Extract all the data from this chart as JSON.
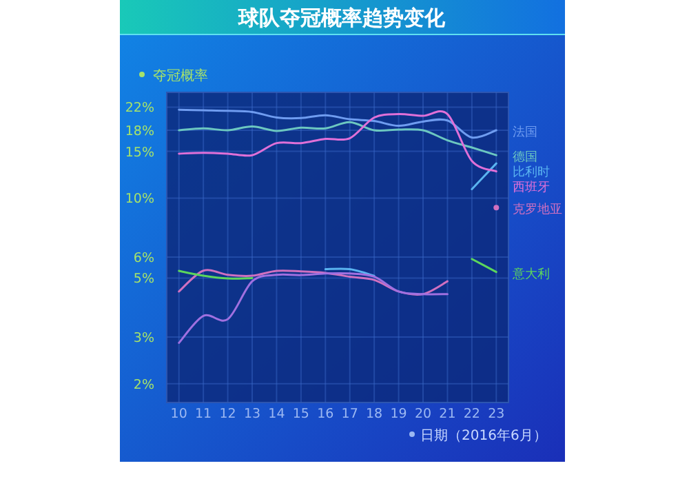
{
  "chart_data": {
    "type": "line",
    "title": "球队夺冠概率趋势变化",
    "ylabel": "夺冠概率",
    "xlabel": "日期（2016年6月）",
    "categories": [
      "10",
      "11",
      "12",
      "13",
      "14",
      "15",
      "16",
      "17",
      "18",
      "19",
      "20",
      "21",
      "22",
      "23"
    ],
    "series": [
      {
        "name": "法国",
        "color": "#6f9cf0",
        "values": [
          21.5,
          21.4,
          21.3,
          21.1,
          20.1,
          20.0,
          20.5,
          19.8,
          19.5,
          18.7,
          19.4,
          19.6,
          16.9,
          18
        ]
      },
      {
        "name": "德国",
        "color": "#6cc7c0",
        "values": [
          18,
          18.3,
          18,
          18.6,
          17.9,
          18.4,
          18.3,
          19.3,
          18,
          18.1,
          18,
          16.5,
          15.5,
          14.5
        ]
      },
      {
        "name": "比利时",
        "color": "#5ab4f0",
        "values": [
          null,
          null,
          null,
          null,
          null,
          null,
          5.4,
          5.4,
          5.1,
          null,
          null,
          null,
          10.8,
          13.5
        ]
      },
      {
        "name": "西班牙",
        "color": "#e070d8",
        "values": [
          14.7,
          14.8,
          14.7,
          14.5,
          16.1,
          16.1,
          16.7,
          16.8,
          20.1,
          20.7,
          20.4,
          20.7,
          13.8,
          12.6
        ]
      },
      {
        "name": "克罗地亚",
        "color": "#d070c0",
        "values": [
          4.45,
          5.33,
          5.14,
          5.1,
          5.32,
          5.3,
          5.23,
          5.06,
          4.92,
          4.45,
          4.35,
          4.86,
          null,
          9.2
        ]
      },
      {
        "name": "意大利",
        "color": "#5cd65c",
        "values": [
          5.32,
          5.1,
          4.98,
          5.0,
          null,
          null,
          null,
          null,
          null,
          null,
          null,
          null,
          5.9,
          5.27
        ]
      },
      {
        "color": "#a070e0",
        "values": [
          2.85,
          3.6,
          3.5,
          4.86,
          5.14,
          5.13,
          5.2,
          5.2,
          5.06,
          4.45,
          4.35,
          4.35,
          null,
          null
        ]
      }
    ],
    "ylim": [
      1.7,
      25
    ],
    "log": true,
    "yticks": [
      {
        "value": 22,
        "label": "22%"
      },
      {
        "value": 18,
        "label": "18%"
      },
      {
        "value": 15,
        "label": "15%"
      },
      {
        "value": 10,
        "label": "10%"
      },
      {
        "value": 6,
        "label": "6%"
      },
      {
        "value": 5,
        "label": "5%"
      },
      {
        "value": 3,
        "label": "3%"
      },
      {
        "value": 2,
        "label": "2%"
      }
    ],
    "grid": true,
    "legend": "right"
  }
}
